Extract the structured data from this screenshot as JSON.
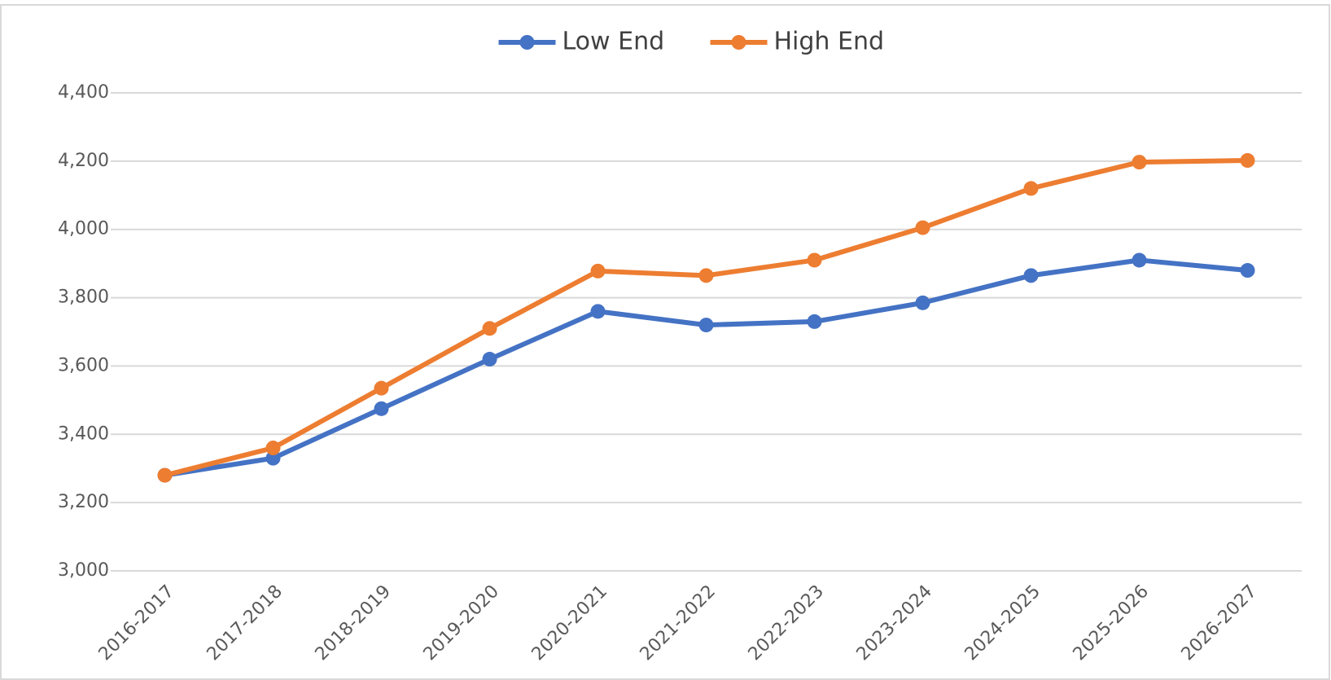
{
  "chart_data": {
    "type": "line",
    "categories": [
      "2016-2017",
      "2017-2018",
      "2018-2019",
      "2019-2020",
      "2020-2021",
      "2021-2022",
      "2022-2023",
      "2023-2024",
      "2024-2025",
      "2025-2026",
      "2026-2027"
    ],
    "series": [
      {
        "name": "Low End",
        "color": "#4472c4",
        "values": [
          3280,
          3330,
          3475,
          3620,
          3760,
          3720,
          3730,
          3785,
          3865,
          3910,
          3880
        ]
      },
      {
        "name": "High End",
        "color": "#ed7d31",
        "values": [
          3280,
          3360,
          3535,
          3710,
          3878,
          3865,
          3910,
          4005,
          4120,
          4197,
          4202
        ]
      }
    ],
    "ylim": [
      3000,
      4400
    ],
    "yticks": [
      {
        "value": 3000,
        "label": "3,000"
      },
      {
        "value": 3200,
        "label": "3,200"
      },
      {
        "value": 3400,
        "label": "3,400"
      },
      {
        "value": 3600,
        "label": "3,600"
      },
      {
        "value": 3800,
        "label": "3,800"
      },
      {
        "value": 4000,
        "label": "4,000"
      },
      {
        "value": 4200,
        "label": "4,200"
      },
      {
        "value": 4400,
        "label": "4,400"
      }
    ],
    "grid": true,
    "legend": "top"
  }
}
